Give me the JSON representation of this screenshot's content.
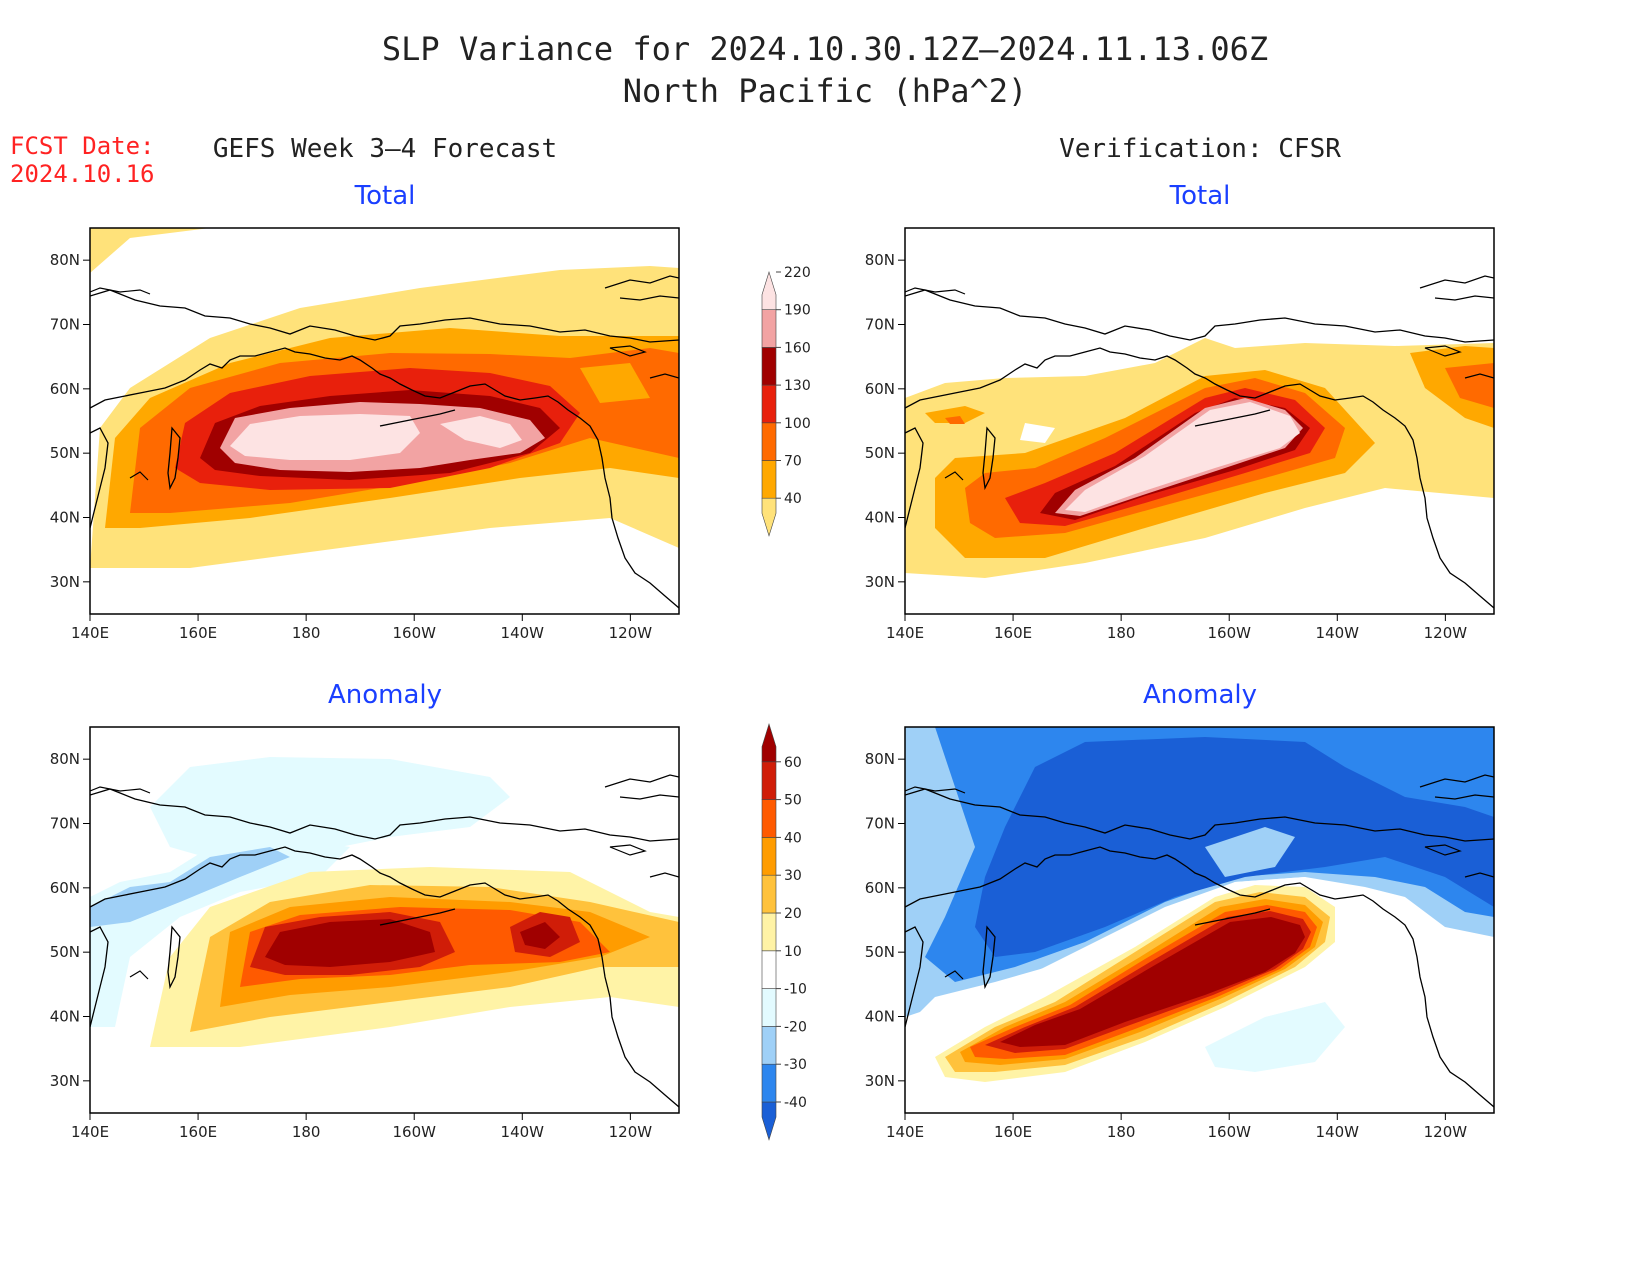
{
  "title": {
    "line1": "SLP Variance for 2024.10.30.12Z–2024.11.13.06Z",
    "line2": "North Pacific (hPa^2)"
  },
  "fcst": {
    "label": "FCST Date:",
    "date": "2024.10.16"
  },
  "columns": {
    "left": "GEFS Week 3–4 Forecast",
    "right": "Verification: CFSR"
  },
  "subtitles": {
    "total": "Total",
    "anomaly": "Anomaly"
  },
  "map": {
    "lon_labels": [
      "140E",
      "160E",
      "180",
      "160W",
      "140W",
      "120W"
    ],
    "lat_labels": [
      "80N",
      "70N",
      "60N",
      "50N",
      "40N",
      "30N"
    ],
    "lon_range": [
      140,
      249
    ],
    "lat_range": [
      25,
      85
    ]
  },
  "colorbars": {
    "total": {
      "levels": [
        "40",
        "70",
        "100",
        "130",
        "160",
        "190",
        "220"
      ],
      "colors": [
        "#ffe27a",
        "#ffa800",
        "#ff6a00",
        "#e8200c",
        "#a00000",
        "#f2a3a3",
        "#fde3e3"
      ]
    },
    "anomaly": {
      "levels": [
        "-40",
        "-30",
        "-20",
        "-10",
        "10",
        "20",
        "30",
        "40",
        "50",
        "60"
      ],
      "colors": [
        "#1a5fd6",
        "#2d86ee",
        "#9fd0f7",
        "#e3fbff",
        "#ffffff",
        "#fff3a6",
        "#ffc23c",
        "#ff9c00",
        "#ff5a00",
        "#d01d08",
        "#a00000"
      ]
    }
  }
}
